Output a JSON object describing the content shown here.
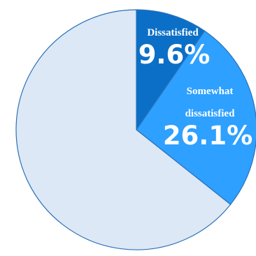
{
  "chart_data": {
    "type": "pie",
    "categories": [
      "Dissatisfied",
      "Somewhat dissatisfied",
      ""
    ],
    "values": [
      9.6,
      26.1,
      64.3
    ],
    "value_labels": [
      "9.6%",
      "26.1%",
      ""
    ],
    "label_lines": [
      [
        "Dissatisfied"
      ],
      [
        "Somewhat",
        "dissatisfied"
      ],
      []
    ],
    "colors": [
      "#0b6fc7",
      "#2ea0ff",
      "#dce8f5"
    ],
    "stroke": "#2d72b8",
    "start": "12 o'clock",
    "direction": "clockwise",
    "legend": "none"
  }
}
